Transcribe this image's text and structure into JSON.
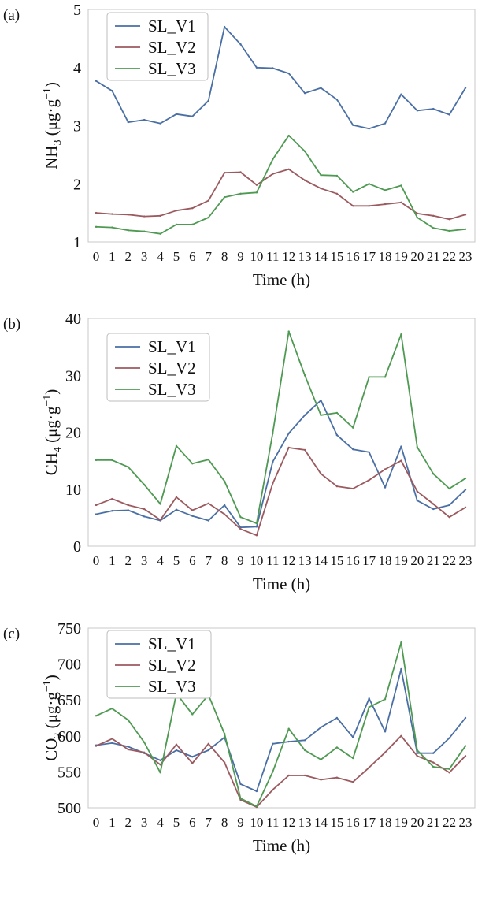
{
  "chart_data": [
    {
      "type": "line",
      "panel_label": "(a)",
      "ylabel": {
        "main": "NH",
        "sub": "3",
        "unit_pre": " (μg·g",
        "unit_sup": "−1",
        "unit_post": ")"
      },
      "xlabel": "Time (h)",
      "ylim": [
        1,
        5
      ],
      "yticks": [
        "1",
        "2",
        "3",
        "4",
        "5"
      ],
      "x": [
        0,
        1,
        2,
        3,
        4,
        5,
        6,
        7,
        8,
        9,
        10,
        11,
        12,
        13,
        14,
        15,
        16,
        17,
        18,
        19,
        20,
        21,
        22,
        23
      ],
      "xticks": [
        "0",
        "1",
        "2",
        "3",
        "4",
        "5",
        "6",
        "7",
        "8",
        "9",
        "10",
        "11",
        "12",
        "13",
        "14",
        "15",
        "16",
        "17",
        "18",
        "19",
        "20",
        "21",
        "22",
        "23"
      ],
      "grid": false,
      "legend": "top-left",
      "series": [
        {
          "name": "SL_V1",
          "color": "#4a6fa5",
          "values": [
            3.77,
            3.6,
            3.06,
            3.1,
            3.04,
            3.2,
            3.16,
            3.43,
            4.7,
            4.4,
            4.0,
            3.99,
            3.9,
            3.56,
            3.65,
            3.45,
            3.01,
            2.95,
            3.04,
            3.54,
            3.26,
            3.29,
            3.19,
            3.65
          ]
        },
        {
          "name": "SL_V2",
          "color": "#9b5a5f",
          "values": [
            1.5,
            1.48,
            1.47,
            1.44,
            1.45,
            1.54,
            1.58,
            1.71,
            2.19,
            2.2,
            1.98,
            2.17,
            2.25,
            2.06,
            1.92,
            1.83,
            1.62,
            1.62,
            1.65,
            1.68,
            1.49,
            1.45,
            1.39,
            1.47
          ]
        },
        {
          "name": "SL_V3",
          "color": "#4f9a52",
          "values": [
            1.26,
            1.25,
            1.2,
            1.18,
            1.14,
            1.3,
            1.3,
            1.42,
            1.77,
            1.83,
            1.85,
            2.42,
            2.83,
            2.56,
            2.15,
            2.14,
            1.86,
            2.0,
            1.89,
            1.97,
            1.42,
            1.24,
            1.19,
            1.22
          ]
        }
      ]
    },
    {
      "type": "line",
      "panel_label": "(b)",
      "ylabel": {
        "main": "CH",
        "sub": "4",
        "unit_pre": " (μg·g",
        "unit_sup": "−1",
        "unit_post": ")"
      },
      "xlabel": "Time (h)",
      "ylim": [
        0,
        40
      ],
      "yticks": [
        "0",
        "10",
        "20",
        "30",
        "40"
      ],
      "x": [
        0,
        1,
        2,
        3,
        4,
        5,
        6,
        7,
        8,
        9,
        10,
        11,
        12,
        13,
        14,
        15,
        16,
        17,
        18,
        19,
        20,
        21,
        22,
        23
      ],
      "xticks": [
        "0",
        "1",
        "2",
        "3",
        "4",
        "5",
        "6",
        "7",
        "8",
        "9",
        "10",
        "11",
        "12",
        "13",
        "14",
        "15",
        "16",
        "17",
        "18",
        "19",
        "20",
        "21",
        "22",
        "23"
      ],
      "grid": false,
      "legend": "top-left",
      "series": [
        {
          "name": "SL_V1",
          "color": "#4a6fa5",
          "values": [
            5.6,
            6.2,
            6.3,
            5.2,
            4.5,
            6.4,
            5.3,
            4.5,
            7.2,
            3.3,
            3.4,
            14.8,
            19.8,
            23.0,
            25.6,
            19.5,
            17.0,
            16.5,
            10.3,
            17.5,
            8.0,
            6.5,
            7.2,
            9.9
          ]
        },
        {
          "name": "SL_V2",
          "color": "#9b5a5f",
          "values": [
            7.2,
            8.3,
            7.2,
            6.5,
            4.6,
            8.6,
            6.3,
            7.5,
            5.6,
            3.0,
            1.9,
            11.0,
            17.3,
            16.9,
            12.7,
            10.5,
            10.1,
            11.6,
            13.5,
            15.0,
            9.6,
            7.4,
            5.1,
            6.8
          ]
        },
        {
          "name": "SL_V3",
          "color": "#4f9a52",
          "values": [
            15.1,
            15.1,
            13.9,
            10.8,
            7.4,
            17.6,
            14.5,
            15.2,
            11.4,
            5.1,
            4.0,
            19.8,
            37.7,
            30.0,
            23.0,
            23.4,
            20.8,
            29.7,
            29.7,
            37.2,
            17.4,
            12.7,
            10.1,
            11.9
          ]
        }
      ]
    },
    {
      "type": "line",
      "panel_label": "(c)",
      "ylabel": {
        "main": "CO",
        "sub": "2",
        "unit_pre": " (μg·g",
        "unit_sup": "−1",
        "unit_post": ")"
      },
      "xlabel": "Time (h)",
      "ylim": [
        500,
        750
      ],
      "yticks": [
        "500",
        "550",
        "600",
        "650",
        "700",
        "750"
      ],
      "x": [
        0,
        1,
        2,
        3,
        4,
        5,
        6,
        7,
        8,
        9,
        10,
        11,
        12,
        13,
        14,
        15,
        16,
        17,
        18,
        19,
        20,
        21,
        22,
        23
      ],
      "xticks": [
        "0",
        "1",
        "2",
        "3",
        "4",
        "5",
        "6",
        "7",
        "8",
        "9",
        "10",
        "11",
        "12",
        "13",
        "14",
        "15",
        "16",
        "17",
        "18",
        "19",
        "20",
        "21",
        "22",
        "23"
      ],
      "grid": false,
      "legend": "top-left",
      "series": [
        {
          "name": "SL_V1",
          "color": "#4a6fa5",
          "values": [
            587,
            590,
            585,
            576,
            566,
            580,
            571,
            580,
            598,
            533,
            523,
            589,
            592,
            594,
            612,
            625,
            598,
            652,
            606,
            693,
            576,
            576,
            597,
            625
          ]
        },
        {
          "name": "SL_V2",
          "color": "#9b5a5f",
          "values": [
            586,
            596,
            581,
            577,
            560,
            588,
            562,
            589,
            563,
            511,
            501,
            525,
            545,
            545,
            539,
            542,
            536,
            556,
            577,
            600,
            572,
            563,
            549,
            572
          ]
        },
        {
          "name": "SL_V3",
          "color": "#4f9a52",
          "values": [
            628,
            638,
            622,
            591,
            549,
            659,
            630,
            657,
            603,
            513,
            502,
            550,
            610,
            580,
            567,
            584,
            569,
            640,
            651,
            730,
            580,
            557,
            554,
            586
          ]
        }
      ]
    }
  ]
}
